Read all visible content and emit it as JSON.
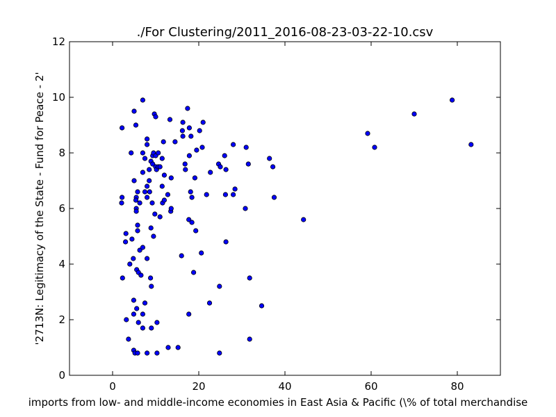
{
  "chart_data": {
    "type": "scatter",
    "title": "./For Clustering/2011_2016-08-23-03-22-10.csv",
    "xlabel": "imports from low- and middle-income economies in East Asia & Pacific  (\\% of total merchandise",
    "ylabel": "'2713N: Legitimacy of the State - Fund for Peace - 2'",
    "xlim": [
      -10,
      90
    ],
    "ylim": [
      0,
      12
    ],
    "xticks": [
      0,
      20,
      40,
      60,
      80
    ],
    "yticks": [
      0,
      2,
      4,
      6,
      8,
      10,
      12
    ],
    "grid": false,
    "marker_color": "#0000ff",
    "edge_color": "#000000",
    "points": [
      [
        2.2,
        8.9
      ],
      [
        2.2,
        6.4
      ],
      [
        2.1,
        6.2
      ],
      [
        2.3,
        3.5
      ],
      [
        3.1,
        5.1
      ],
      [
        3.0,
        4.8
      ],
      [
        3.2,
        2.0
      ],
      [
        3.7,
        1.3
      ],
      [
        4.0,
        4.0
      ],
      [
        4.3,
        8.0
      ],
      [
        4.5,
        4.9
      ],
      [
        4.8,
        4.2
      ],
      [
        4.9,
        2.7
      ],
      [
        4.9,
        2.2
      ],
      [
        5.0,
        9.5
      ],
      [
        5.0,
        7.0
      ],
      [
        4.9,
        0.9
      ],
      [
        5.2,
        0.8
      ],
      [
        5.4,
        9.0
      ],
      [
        5.5,
        6.4
      ],
      [
        5.4,
        6.3
      ],
      [
        5.5,
        6.0
      ],
      [
        5.5,
        5.9
      ],
      [
        5.6,
        3.8
      ],
      [
        5.6,
        2.4
      ],
      [
        5.8,
        6.6
      ],
      [
        5.8,
        5.4
      ],
      [
        5.8,
        5.2
      ],
      [
        5.8,
        0.8
      ],
      [
        6.0,
        3.7
      ],
      [
        6.0,
        1.9
      ],
      [
        6.3,
        6.2
      ],
      [
        6.3,
        4.5
      ],
      [
        6.6,
        3.6
      ],
      [
        7.0,
        9.9
      ],
      [
        7.0,
        8.0
      ],
      [
        7.0,
        7.3
      ],
      [
        7.0,
        4.6
      ],
      [
        7.0,
        2.2
      ],
      [
        7.0,
        1.7
      ],
      [
        7.5,
        7.8
      ],
      [
        7.5,
        6.6
      ],
      [
        7.5,
        2.6
      ],
      [
        8.0,
        8.5
      ],
      [
        8.0,
        8.3
      ],
      [
        8.0,
        6.8
      ],
      [
        8.0,
        6.4
      ],
      [
        8.0,
        4.2
      ],
      [
        8.0,
        0.8
      ],
      [
        8.5,
        7.4
      ],
      [
        8.5,
        7.0
      ],
      [
        8.6,
        6.6
      ],
      [
        8.9,
        7.7
      ],
      [
        8.9,
        5.3
      ],
      [
        8.8,
        3.5
      ],
      [
        9.0,
        3.2
      ],
      [
        9.0,
        1.7
      ],
      [
        9.2,
        6.2
      ],
      [
        9.3,
        7.6
      ],
      [
        9.3,
        7.9
      ],
      [
        9.5,
        8.0
      ],
      [
        9.5,
        5.0
      ],
      [
        9.7,
        9.4
      ],
      [
        9.8,
        5.8
      ],
      [
        10.0,
        9.3
      ],
      [
        10.0,
        7.5
      ],
      [
        10.0,
        7.9
      ],
      [
        10.2,
        7.4
      ],
      [
        10.3,
        1.9
      ],
      [
        10.3,
        0.8
      ],
      [
        10.6,
        8.0
      ],
      [
        10.6,
        7.5
      ],
      [
        11.0,
        5.7
      ],
      [
        11.0,
        7.5
      ],
      [
        11.5,
        7.8
      ],
      [
        11.5,
        6.8
      ],
      [
        11.6,
        6.2
      ],
      [
        11.8,
        8.4
      ],
      [
        12.0,
        7.2
      ],
      [
        12.0,
        6.3
      ],
      [
        12.8,
        6.5
      ],
      [
        12.9,
        1.0
      ],
      [
        13.3,
        9.2
      ],
      [
        13.5,
        5.9
      ],
      [
        13.6,
        6.0
      ],
      [
        13.6,
        7.1
      ],
      [
        14.5,
        8.4
      ],
      [
        15.2,
        1.0
      ],
      [
        16.0,
        4.3
      ],
      [
        16.2,
        8.8
      ],
      [
        16.3,
        9.1
      ],
      [
        16.3,
        8.6
      ],
      [
        16.8,
        7.6
      ],
      [
        16.9,
        7.4
      ],
      [
        17.4,
        9.6
      ],
      [
        17.7,
        5.6
      ],
      [
        17.7,
        2.2
      ],
      [
        17.8,
        8.9
      ],
      [
        17.8,
        7.9
      ],
      [
        18.1,
        6.6
      ],
      [
        18.2,
        8.6
      ],
      [
        18.4,
        6.4
      ],
      [
        18.4,
        5.5
      ],
      [
        18.8,
        3.7
      ],
      [
        19.1,
        7.1
      ],
      [
        19.3,
        5.2
      ],
      [
        19.5,
        8.1
      ],
      [
        20.2,
        8.8
      ],
      [
        20.6,
        4.4
      ],
      [
        20.8,
        8.2
      ],
      [
        21.0,
        9.1
      ],
      [
        21.8,
        6.5
      ],
      [
        22.5,
        2.6
      ],
      [
        22.7,
        7.3
      ],
      [
        24.6,
        7.6
      ],
      [
        24.8,
        3.2
      ],
      [
        24.8,
        0.8
      ],
      [
        25.0,
        7.5
      ],
      [
        26.0,
        7.9
      ],
      [
        26.2,
        6.5
      ],
      [
        26.3,
        7.4
      ],
      [
        26.3,
        4.8
      ],
      [
        28.0,
        8.3
      ],
      [
        28.0,
        6.5
      ],
      [
        28.4,
        6.7
      ],
      [
        30.8,
        6.0
      ],
      [
        31.0,
        8.2
      ],
      [
        31.5,
        7.6
      ],
      [
        31.8,
        3.5
      ],
      [
        31.8,
        1.3
      ],
      [
        34.6,
        2.5
      ],
      [
        36.4,
        7.8
      ],
      [
        37.2,
        7.5
      ],
      [
        37.5,
        6.4
      ],
      [
        44.3,
        5.6
      ],
      [
        59.2,
        8.7
      ],
      [
        60.8,
        8.2
      ],
      [
        70.0,
        9.4
      ],
      [
        78.8,
        9.9
      ],
      [
        83.2,
        8.3
      ]
    ]
  }
}
